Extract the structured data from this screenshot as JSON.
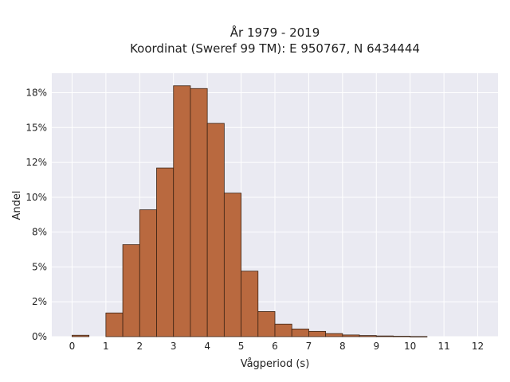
{
  "chart_data": {
    "type": "bar",
    "title_lines": [
      "År 1979 - 2019",
      "Koordinat (Sweref 99 TM): E 950767, N 6434444"
    ],
    "xlabel": "Vågperiod (s)",
    "ylabel": "Andel",
    "bin_width": 0.5,
    "x": [
      0,
      0.5,
      1,
      1.5,
      2,
      2.5,
      3,
      3.5,
      4,
      4.5,
      5,
      5.5,
      6,
      6.5,
      7,
      7.5,
      8,
      8.5,
      9,
      9.5,
      10,
      10.5,
      11,
      11.5
    ],
    "values": [
      0.1,
      0.0,
      1.7,
      6.6,
      9.1,
      12.1,
      18.0,
      17.8,
      15.3,
      10.3,
      4.7,
      1.8,
      0.9,
      0.55,
      0.38,
      0.22,
      0.12,
      0.08,
      0.05,
      0.03,
      0.01,
      0.0,
      0.0,
      0.0
    ],
    "xlim": [
      -0.6,
      12.6
    ],
    "ylim": [
      0,
      18.9
    ],
    "x_ticks": [
      0,
      1,
      2,
      3,
      4,
      5,
      6,
      7,
      8,
      9,
      10,
      11,
      12
    ],
    "x_tick_labels": [
      "0",
      "1",
      "2",
      "3",
      "4",
      "5",
      "6",
      "7",
      "8",
      "9",
      "10",
      "11",
      "12"
    ],
    "y_ticks": [
      0,
      2.5,
      5,
      7.5,
      10,
      12.5,
      15,
      17.5
    ],
    "y_tick_labels": [
      "0%",
      "2%",
      "5%",
      "8%",
      "10%",
      "12%",
      "15%",
      "18%"
    ],
    "grid": true,
    "legend": "none",
    "colors": {
      "bar_fill": "#B9693F",
      "bar_edge": "#3d2414",
      "plot_background": "#EAEAF2",
      "grid": "#ffffff",
      "text": "#222222"
    }
  }
}
